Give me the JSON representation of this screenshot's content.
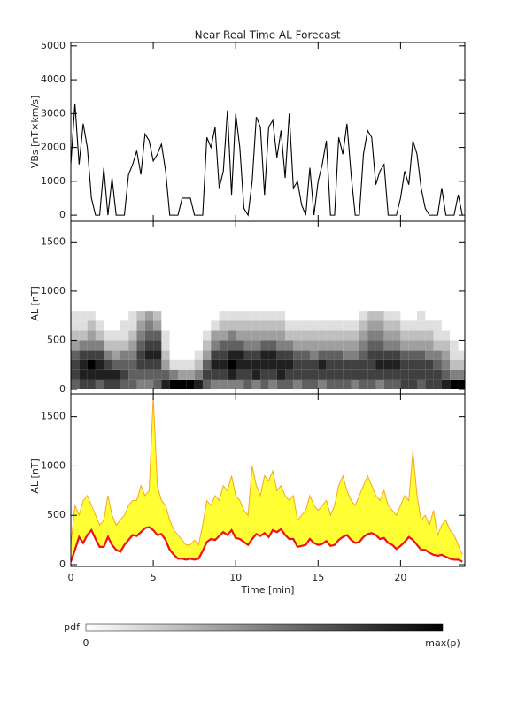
{
  "title": "Near Real Time AL Forecast",
  "chart_data": [
    {
      "type": "line",
      "ylabel": "VBs [nT×km/s]",
      "color": "#000000",
      "xlim": [
        0,
        23.9
      ],
      "xticks": [
        0,
        5,
        10,
        15,
        20
      ],
      "ylim": [
        -180,
        5100
      ],
      "yticks": [
        0,
        1000,
        2000,
        3000,
        4000,
        5000
      ],
      "x": [
        0,
        0.25,
        0.5,
        0.75,
        1,
        1.25,
        1.5,
        1.75,
        2,
        2.25,
        2.5,
        2.75,
        3,
        3.25,
        3.5,
        3.75,
        4,
        4.25,
        4.5,
        4.75,
        5,
        5.25,
        5.5,
        5.75,
        6,
        6.25,
        6.5,
        6.75,
        7,
        7.25,
        7.5,
        7.75,
        8,
        8.25,
        8.5,
        8.75,
        9,
        9.25,
        9.5,
        9.75,
        10,
        10.25,
        10.5,
        10.75,
        11,
        11.25,
        11.5,
        11.75,
        12,
        12.25,
        12.5,
        12.75,
        13,
        13.25,
        13.5,
        13.75,
        14,
        14.25,
        14.5,
        14.75,
        15,
        15.25,
        15.5,
        15.75,
        16,
        16.25,
        16.5,
        16.75,
        17,
        17.25,
        17.5,
        17.75,
        18,
        18.25,
        18.5,
        18.75,
        19,
        19.25,
        19.5,
        19.75,
        20,
        20.25,
        20.5,
        20.75,
        21,
        21.25,
        21.5,
        21.75,
        22,
        22.25,
        22.5,
        22.75,
        23,
        23.25,
        23.5,
        23.75
      ],
      "values": [
        1500,
        3300,
        1500,
        2700,
        2000,
        500,
        0,
        0,
        1400,
        0,
        1100,
        0,
        0,
        0,
        1200,
        1500,
        1900,
        1200,
        2400,
        2200,
        1600,
        1800,
        2100,
        1300,
        0,
        0,
        0,
        500,
        500,
        500,
        0,
        0,
        0,
        2300,
        2000,
        2600,
        800,
        1300,
        3100,
        600,
        3000,
        2000,
        200,
        0,
        1000,
        2900,
        2600,
        600,
        2600,
        2800,
        1700,
        2500,
        1100,
        3000,
        800,
        1000,
        300,
        0,
        1400,
        0,
        1000,
        1500,
        2200,
        0,
        0,
        2300,
        1800,
        2700,
        1200,
        0,
        0,
        1800,
        2500,
        2300,
        900,
        1300,
        1500,
        0,
        0,
        0,
        500,
        1300,
        900,
        2200,
        1800,
        800,
        200,
        0,
        0,
        0,
        800,
        0,
        0,
        0,
        600,
        0
      ]
    },
    {
      "type": "heatmap",
      "ylabel": "−AL [nT]",
      "xlim": [
        0,
        23.9
      ],
      "xticks": [
        0,
        5,
        10,
        15,
        20
      ],
      "ylim": [
        -45,
        1710
      ],
      "yticks": [
        0,
        500,
        1000,
        1500
      ],
      "xbins": [
        0,
        0.5,
        1,
        1.5,
        2,
        2.5,
        3,
        3.5,
        4,
        4.5,
        5,
        5.5,
        6,
        6.5,
        7,
        7.5,
        8,
        8.5,
        9,
        9.5,
        10,
        10.5,
        11,
        11.5,
        12,
        12.5,
        13,
        13.5,
        14,
        14.5,
        15,
        15.5,
        16,
        16.5,
        17,
        17.5,
        18,
        18.5,
        19,
        19.5,
        20,
        20.5,
        21,
        21.5,
        22,
        22.5,
        23,
        23.5,
        24
      ],
      "ybins": [
        0,
        100,
        200,
        300,
        400,
        500,
        600,
        700,
        800
      ],
      "values": [
        [
          5,
          6,
          6,
          5,
          6,
          6,
          5,
          5,
          4,
          4,
          5,
          7,
          8,
          8,
          8,
          7,
          5,
          4,
          4,
          4,
          4,
          5,
          4,
          5,
          4,
          5,
          5,
          4,
          5,
          5,
          4,
          5,
          5,
          5,
          4,
          5,
          5,
          4,
          5,
          5,
          6,
          6,
          5,
          6,
          6,
          7,
          8,
          8
        ],
        [
          6,
          7,
          7,
          7,
          7,
          7,
          6,
          5,
          5,
          5,
          5,
          5,
          4,
          3,
          3,
          4,
          6,
          6,
          6,
          7,
          6,
          6,
          7,
          6,
          6,
          7,
          6,
          6,
          6,
          6,
          6,
          6,
          6,
          6,
          6,
          6,
          6,
          6,
          6,
          6,
          6,
          6,
          6,
          6,
          6,
          5,
          4,
          4
        ],
        [
          6,
          7,
          8,
          7,
          6,
          5,
          5,
          5,
          6,
          6,
          6,
          3,
          1,
          1,
          1,
          2,
          5,
          7,
          7,
          8,
          7,
          7,
          7,
          7,
          7,
          7,
          7,
          6,
          6,
          6,
          7,
          6,
          6,
          6,
          6,
          6,
          6,
          7,
          7,
          7,
          6,
          6,
          6,
          6,
          5,
          4,
          2,
          2
        ],
        [
          5,
          6,
          6,
          6,
          4,
          3,
          4,
          4,
          6,
          7,
          7,
          2,
          0,
          0,
          0,
          1,
          3,
          6,
          6,
          7,
          7,
          6,
          6,
          7,
          7,
          6,
          6,
          5,
          5,
          4,
          5,
          5,
          5,
          4,
          4,
          5,
          6,
          6,
          6,
          6,
          5,
          5,
          5,
          4,
          4,
          3,
          1,
          1
        ],
        [
          3,
          4,
          4,
          4,
          2,
          2,
          2,
          3,
          5,
          6,
          6,
          1,
          0,
          0,
          0,
          0,
          2,
          4,
          5,
          5,
          5,
          4,
          4,
          5,
          5,
          4,
          4,
          3,
          3,
          3,
          3,
          3,
          3,
          3,
          3,
          4,
          5,
          5,
          4,
          4,
          3,
          3,
          3,
          3,
          2,
          2,
          1,
          0
        ],
        [
          2,
          2,
          3,
          2,
          1,
          1,
          1,
          2,
          4,
          5,
          5,
          1,
          0,
          0,
          0,
          0,
          1,
          3,
          3,
          4,
          3,
          3,
          3,
          3,
          3,
          3,
          2,
          2,
          2,
          2,
          2,
          2,
          2,
          2,
          2,
          3,
          4,
          4,
          3,
          3,
          2,
          2,
          2,
          2,
          1,
          1,
          0,
          0
        ],
        [
          1,
          1,
          2,
          1,
          0,
          0,
          1,
          1,
          3,
          4,
          3,
          0,
          0,
          0,
          0,
          0,
          0,
          1,
          2,
          2,
          2,
          2,
          2,
          2,
          2,
          2,
          1,
          1,
          1,
          1,
          1,
          1,
          1,
          1,
          1,
          2,
          3,
          3,
          2,
          2,
          1,
          1,
          1,
          1,
          1,
          0,
          0,
          0
        ],
        [
          1,
          1,
          1,
          0,
          0,
          0,
          0,
          1,
          2,
          3,
          2,
          0,
          0,
          0,
          0,
          0,
          0,
          0,
          1,
          1,
          1,
          1,
          1,
          1,
          1,
          1,
          0,
          0,
          0,
          0,
          0,
          0,
          0,
          0,
          0,
          1,
          2,
          2,
          1,
          1,
          0,
          0,
          1,
          0,
          0,
          0,
          0,
          0
        ]
      ]
    },
    {
      "type": "band",
      "ylabel": "−AL [nT]",
      "xlabel": "Time [min]",
      "fill_color": "#ffff33",
      "xlim": [
        0,
        23.9
      ],
      "xticks": [
        0,
        5,
        10,
        15,
        20
      ],
      "ylim": [
        -18,
        1730
      ],
      "yticks": [
        0,
        500,
        1000,
        1500
      ],
      "x": [
        0,
        0.25,
        0.5,
        0.75,
        1,
        1.25,
        1.5,
        1.75,
        2,
        2.25,
        2.5,
        2.75,
        3,
        3.25,
        3.5,
        3.75,
        4,
        4.25,
        4.5,
        4.75,
        5,
        5.25,
        5.5,
        5.75,
        6,
        6.25,
        6.5,
        6.75,
        7,
        7.25,
        7.5,
        7.75,
        8,
        8.25,
        8.5,
        8.75,
        9,
        9.25,
        9.5,
        9.75,
        10,
        10.25,
        10.5,
        10.75,
        11,
        11.25,
        11.5,
        11.75,
        12,
        12.25,
        12.5,
        12.75,
        13,
        13.25,
        13.5,
        13.75,
        14,
        14.25,
        14.5,
        14.75,
        15,
        15.25,
        15.5,
        15.75,
        16,
        16.25,
        16.5,
        16.75,
        17,
        17.25,
        17.5,
        17.75,
        18,
        18.25,
        18.5,
        18.75,
        19,
        19.25,
        19.5,
        19.75,
        20,
        20.25,
        20.5,
        20.75,
        21,
        21.25,
        21.5,
        21.75,
        22,
        22.25,
        22.5,
        22.75,
        23,
        23.25,
        23.5,
        23.75
      ],
      "series": [
        {
          "color": "#f5a623",
          "values": [
            200,
            600,
            500,
            650,
            700,
            600,
            500,
            400,
            450,
            700,
            500,
            400,
            450,
            500,
            600,
            650,
            650,
            800,
            700,
            750,
            1700,
            800,
            650,
            600,
            450,
            350,
            300,
            250,
            200,
            200,
            250,
            200,
            400,
            650,
            600,
            700,
            650,
            800,
            750,
            900,
            700,
            650,
            550,
            500,
            1000,
            800,
            700,
            900,
            850,
            950,
            750,
            800,
            700,
            650,
            700,
            450,
            500,
            550,
            700,
            600,
            550,
            600,
            650,
            500,
            600,
            800,
            900,
            750,
            650,
            600,
            700,
            800,
            900,
            800,
            700,
            650,
            750,
            600,
            550,
            500,
            600,
            700,
            650,
            1150,
            700,
            450,
            500,
            400,
            550,
            300,
            400,
            450,
            350,
            300,
            200,
            100
          ]
        },
        {
          "color": "#ee1111",
          "values": [
            30,
            150,
            280,
            220,
            300,
            350,
            260,
            180,
            180,
            280,
            200,
            150,
            130,
            200,
            250,
            300,
            290,
            330,
            370,
            380,
            350,
            300,
            310,
            250,
            150,
            100,
            60,
            60,
            50,
            60,
            50,
            60,
            140,
            230,
            260,
            250,
            290,
            330,
            300,
            350,
            270,
            260,
            230,
            200,
            260,
            310,
            290,
            320,
            280,
            350,
            330,
            360,
            300,
            260,
            260,
            180,
            190,
            200,
            260,
            220,
            200,
            210,
            240,
            190,
            200,
            250,
            280,
            300,
            250,
            220,
            230,
            280,
            310,
            320,
            300,
            260,
            270,
            220,
            200,
            160,
            190,
            230,
            280,
            250,
            200,
            150,
            150,
            120,
            100,
            90,
            100,
            80,
            60,
            50,
            50,
            30
          ]
        }
      ]
    }
  ],
  "colorbar": {
    "label": "pdf",
    "min_label": "0",
    "max_label": "max(p)"
  }
}
